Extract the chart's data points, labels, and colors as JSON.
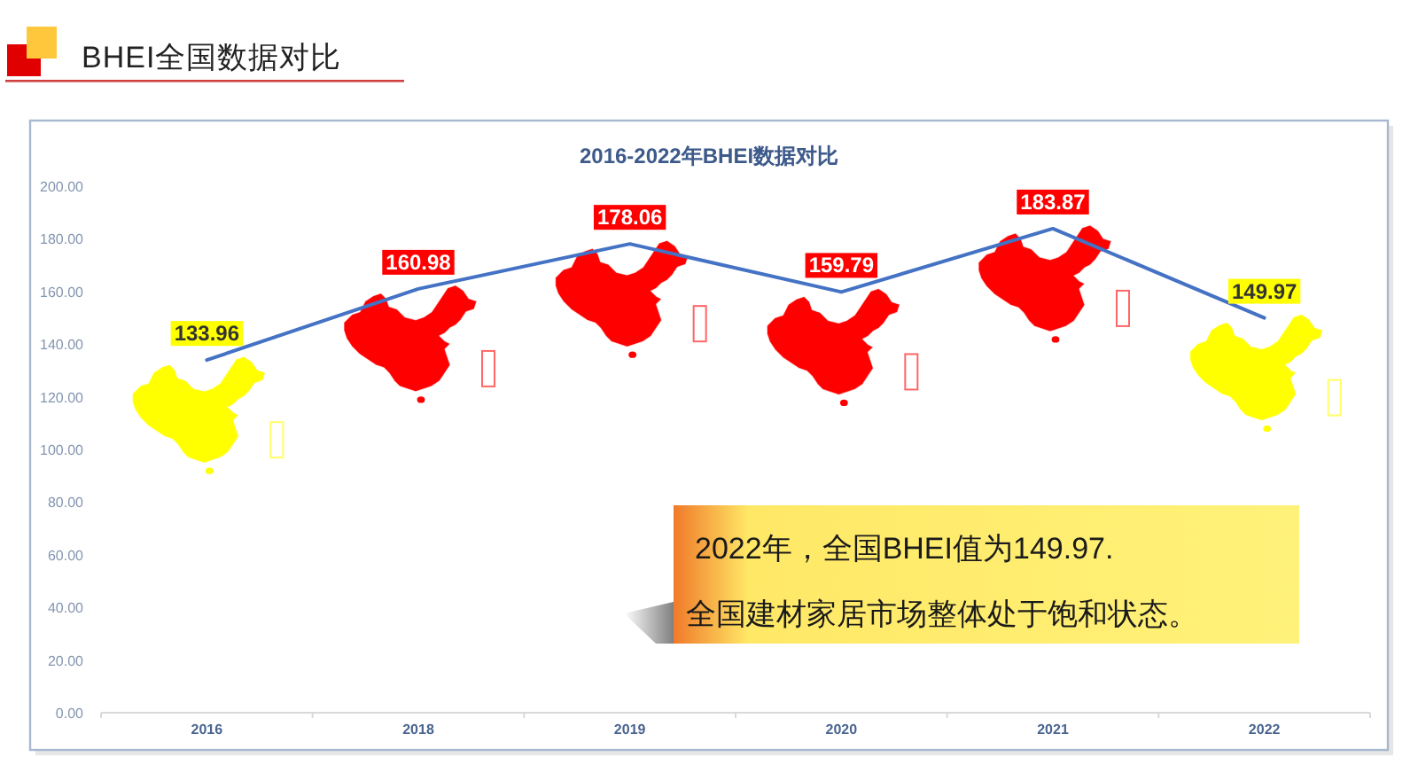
{
  "chart_data": {
    "type": "line",
    "title": "BHEI全国数据对比",
    "subtitle": "2016-2022年BHEI数据对比",
    "categories": [
      "2016",
      "2018",
      "2019",
      "2020",
      "2021",
      "2022"
    ],
    "series": [
      {
        "color": "#4472c4",
        "colors": [
          "#ffff00",
          "#ff0000",
          "#ff0000",
          "#ff0000",
          "#ff0000",
          "#ffff00"
        ],
        "values": [
          133.96,
          160.98,
          178.06,
          159.79,
          183.87,
          149.97
        ]
      }
    ],
    "ylim": [
      0,
      200
    ],
    "yticks": [
      {
        "value": 0,
        "label": "0.00"
      },
      {
        "value": 20,
        "label": "20.00"
      },
      {
        "value": 40,
        "label": "40.00"
      },
      {
        "value": 60,
        "label": "60.00"
      },
      {
        "value": 80,
        "label": "80.00"
      },
      {
        "value": 100,
        "label": "100.00"
      },
      {
        "value": 120,
        "label": "120.00"
      },
      {
        "value": 140,
        "label": "140.00"
      },
      {
        "value": 160,
        "label": "160.00"
      },
      {
        "value": 180,
        "label": "180.00"
      },
      {
        "value": 200,
        "label": "200.00"
      }
    ],
    "line_style": "solid",
    "data_labels": true,
    "annotations": [
      "2022年，全国BHEI值为149.97.",
      "全国建材家居市场整体处于饱和状态。"
    ]
  }
}
